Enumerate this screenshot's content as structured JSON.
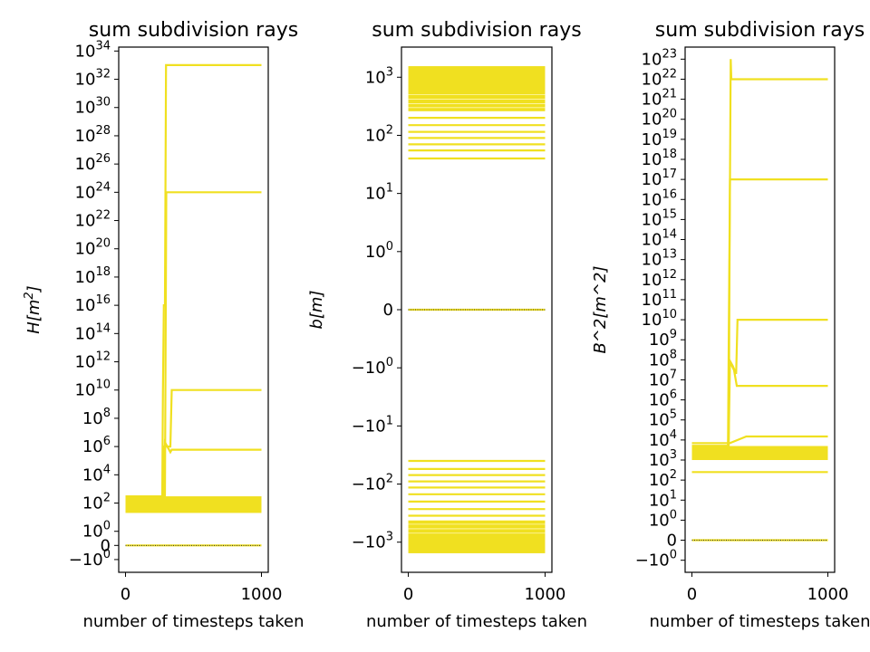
{
  "chart_data": [
    {
      "type": "line",
      "title": "sum subdivision rays",
      "xlabel": "number of timesteps taken",
      "ylabel": "H[m^2]",
      "yscale": "symlog",
      "linthresh": 1,
      "xlim": [
        -50,
        1050
      ],
      "xticks": [
        "0",
        "1000"
      ],
      "yticks": [
        {
          "v": -1,
          "label": "−10^0"
        },
        {
          "v": 0,
          "label": "0"
        },
        {
          "v": 1,
          "label": "10^0"
        },
        {
          "v": 100,
          "label": "10^2"
        },
        {
          "v": 10000,
          "label": "10^4"
        },
        {
          "v": 1000000.0,
          "label": "10^6"
        },
        {
          "v": 100000000.0,
          "label": "10^8"
        },
        {
          "v": 10000000000.0,
          "label": "10^10"
        },
        {
          "v": 1000000000000.0,
          "label": "10^12"
        },
        {
          "v": 100000000000000.0,
          "label": "10^14"
        },
        {
          "v": 1e+16,
          "label": "10^16"
        },
        {
          "v": 1e+18,
          "label": "10^18"
        },
        {
          "v": 1e+20,
          "label": "10^20"
        },
        {
          "v": 1e+22,
          "label": "10^22"
        },
        {
          "v": 1e+24,
          "label": "10^24"
        },
        {
          "v": 1e+26,
          "label": "10^26"
        },
        {
          "v": 1e+28,
          "label": "10^28"
        },
        {
          "v": 1e+30,
          "label": "10^30"
        },
        {
          "v": 1e+32,
          "label": "10^32"
        },
        {
          "v": 1e+34,
          "label": "10^34"
        }
      ],
      "color": "#f0e020",
      "series": [
        {
          "x": [
            0,
            1000
          ],
          "y": [
            0,
            0
          ]
        },
        {
          "x": [
            0,
            270,
            275,
            282,
            290,
            298,
            305,
            1000
          ],
          "y": [
            150,
            150,
            10000000000.0,
            1e+16,
            1e+16,
            1e+33,
            1e+33,
            1e+33
          ]
        },
        {
          "x": [
            0,
            290,
            300,
            1000
          ],
          "y": [
            300,
            300,
            1e+24,
            1e+24
          ]
        },
        {
          "x": [
            0,
            275,
            280,
            330,
            340,
            1000
          ],
          "y": [
            150,
            150,
            1000000.0,
            1000000.0,
            10000000000.0,
            10000000000.0
          ]
        },
        {
          "x": [
            0,
            280,
            290,
            330,
            340,
            1000
          ],
          "y": [
            150,
            150,
            2000000.0,
            400000.0,
            600000.0,
            600000.0
          ]
        }
      ],
      "bands": [
        {
          "x": [
            0,
            1000
          ],
          "ylo": 20,
          "yhi": 300
        }
      ]
    },
    {
      "type": "line",
      "title": "sum subdivision rays",
      "xlabel": "number of timesteps taken",
      "ylabel": "b[m]",
      "yscale": "symlog",
      "linthresh": 1,
      "xlim": [
        -50,
        1050
      ],
      "xticks": [
        "0",
        "1000"
      ],
      "yticks": [
        {
          "v": -1000,
          "label": "−10^3"
        },
        {
          "v": -100,
          "label": "−10^2"
        },
        {
          "v": -10,
          "label": "−10^1"
        },
        {
          "v": -1,
          "label": "−10^0"
        },
        {
          "v": 0,
          "label": "0"
        },
        {
          "v": 1,
          "label": "10^0"
        },
        {
          "v": 10,
          "label": "10^1"
        },
        {
          "v": 100,
          "label": "10^2"
        },
        {
          "v": 1000,
          "label": "10^3"
        }
      ],
      "color": "#f0e020",
      "series": [
        {
          "x": [
            0,
            1000
          ],
          "y": [
            0,
            0
          ]
        },
        {
          "x": [
            0,
            1000
          ],
          "y": [
            40,
            40
          ]
        },
        {
          "x": [
            0,
            1000
          ],
          "y": [
            55,
            55
          ]
        },
        {
          "x": [
            0,
            1000
          ],
          "y": [
            70,
            70
          ]
        },
        {
          "x": [
            0,
            1000
          ],
          "y": [
            90,
            90
          ]
        },
        {
          "x": [
            0,
            1000
          ],
          "y": [
            115,
            115
          ]
        },
        {
          "x": [
            0,
            1000
          ],
          "y": [
            150,
            150
          ]
        },
        {
          "x": [
            0,
            1000
          ],
          "y": [
            200,
            200
          ]
        },
        {
          "x": [
            0,
            1000
          ],
          "y": [
            -40,
            -40
          ]
        },
        {
          "x": [
            0,
            1000
          ],
          "y": [
            -55,
            -55
          ]
        },
        {
          "x": [
            0,
            1000
          ],
          "y": [
            -70,
            -70
          ]
        },
        {
          "x": [
            0,
            1000
          ],
          "y": [
            -90,
            -90
          ]
        },
        {
          "x": [
            0,
            1000
          ],
          "y": [
            -115,
            -115
          ]
        },
        {
          "x": [
            0,
            1000
          ],
          "y": [
            -150,
            -150
          ]
        },
        {
          "x": [
            0,
            1000
          ],
          "y": [
            -200,
            -200
          ]
        },
        {
          "x": [
            0,
            1000
          ],
          "y": [
            -270,
            -270
          ]
        },
        {
          "x": [
            0,
            1000
          ],
          "y": [
            -350,
            -350
          ]
        }
      ],
      "bands": [
        {
          "x": [
            0,
            1000
          ],
          "ylo": 260,
          "yhi": 1550
        },
        {
          "x": [
            0,
            1000
          ],
          "ylo": -1550,
          "yhi": -420
        }
      ]
    },
    {
      "type": "line",
      "title": "sum subdivision rays",
      "xlabel": "number of timesteps taken",
      "ylabel": "B^2[m^2]",
      "yscale": "symlog",
      "linthresh": 1,
      "xlim": [
        -50,
        1050
      ],
      "xticks": [
        "0",
        "1000"
      ],
      "yticks": [
        {
          "v": -1,
          "label": "−10^0"
        },
        {
          "v": 0,
          "label": "0"
        },
        {
          "v": 1,
          "label": "10^0"
        },
        {
          "v": 10,
          "label": "10^1"
        },
        {
          "v": 100,
          "label": "10^2"
        },
        {
          "v": 1000.0,
          "label": "10^3"
        },
        {
          "v": 10000.0,
          "label": "10^4"
        },
        {
          "v": 100000.0,
          "label": "10^5"
        },
        {
          "v": 1000000.0,
          "label": "10^6"
        },
        {
          "v": 10000000.0,
          "label": "10^7"
        },
        {
          "v": 100000000.0,
          "label": "10^8"
        },
        {
          "v": 1000000000.0,
          "label": "10^9"
        },
        {
          "v": 10000000000.0,
          "label": "10^10"
        },
        {
          "v": 100000000000.0,
          "label": "10^11"
        },
        {
          "v": 1000000000000.0,
          "label": "10^12"
        },
        {
          "v": 10000000000000.0,
          "label": "10^13"
        },
        {
          "v": 100000000000000.0,
          "label": "10^14"
        },
        {
          "v": 1000000000000000.0,
          "label": "10^15"
        },
        {
          "v": 1e+16,
          "label": "10^16"
        },
        {
          "v": 1e+17,
          "label": "10^17"
        },
        {
          "v": 1e+18,
          "label": "10^18"
        },
        {
          "v": 1e+19,
          "label": "10^19"
        },
        {
          "v": 1e+20,
          "label": "10^20"
        },
        {
          "v": 1e+21,
          "label": "10^21"
        },
        {
          "v": 1e+22,
          "label": "10^22"
        },
        {
          "v": 1e+23,
          "label": "10^23"
        }
      ],
      "color": "#f0e020",
      "series": [
        {
          "x": [
            0,
            1000
          ],
          "y": [
            0,
            0
          ]
        },
        {
          "x": [
            0,
            1000
          ],
          "y": [
            250,
            250
          ]
        },
        {
          "x": [
            0,
            265,
            272,
            275,
            280,
            285,
            290,
            1000
          ],
          "y": [
            5000,
            5000,
            100000.0,
            100000000000.0,
            1e+17,
            1e+23,
            1e+22,
            1e+22
          ]
        },
        {
          "x": [
            0,
            265,
            272,
            280,
            290,
            1000
          ],
          "y": [
            5000,
            5000,
            10000000000.0,
            1e+17,
            1e+17,
            1e+17
          ]
        },
        {
          "x": [
            0,
            270,
            275,
            300,
            325,
            335,
            1000
          ],
          "y": [
            5000,
            5000,
            100000000.0,
            50000000.0,
            20000000.0,
            10000000000.0,
            10000000000.0
          ]
        },
        {
          "x": [
            0,
            270,
            280,
            310,
            330,
            1000
          ],
          "y": [
            5000,
            5000,
            80000000.0,
            30000000.0,
            5000000.0,
            5000000.0
          ]
        },
        {
          "x": [
            0,
            280,
            400,
            1000
          ],
          "y": [
            7000,
            7000,
            15000,
            15000
          ]
        }
      ],
      "bands": [
        {
          "x": [
            0,
            1000
          ],
          "ylo": 1000,
          "yhi": 5000
        }
      ]
    }
  ]
}
